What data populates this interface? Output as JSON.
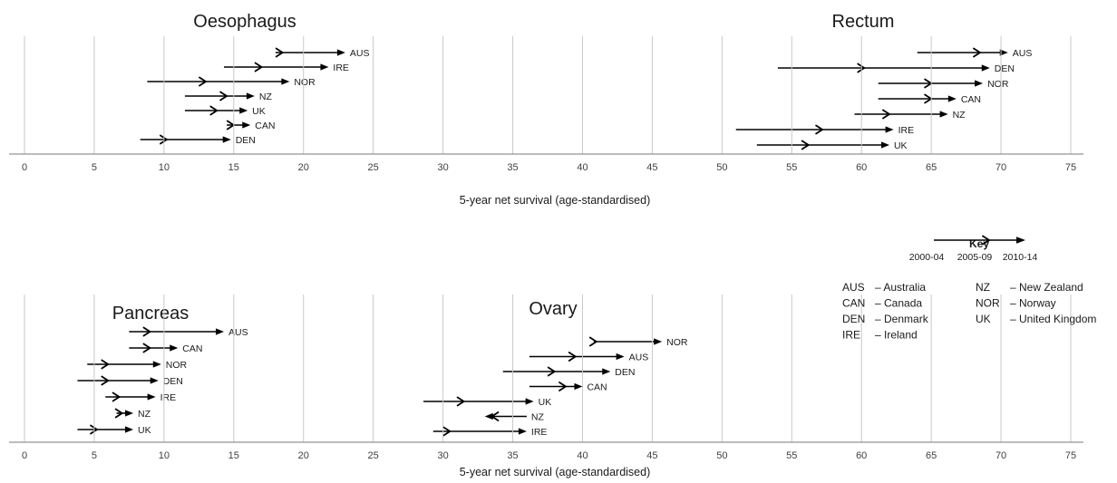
{
  "chart_data": {
    "type": "arrow",
    "x_axis": {
      "range": [
        0,
        75
      ],
      "ticks": [
        0,
        5,
        10,
        15,
        20,
        25,
        30,
        35,
        40,
        45,
        50,
        55,
        60,
        65,
        70,
        75
      ],
      "label": "5-year net survival (age-standardised)"
    },
    "panels": [
      {
        "title": "Oesophagus",
        "rows": [
          {
            "country": "AUS",
            "p2000_04": 18.0,
            "p2005_09": 18.5,
            "p2010_14": 23.0
          },
          {
            "country": "IRE",
            "p2000_04": 14.3,
            "p2005_09": 17.0,
            "p2010_14": 21.8
          },
          {
            "country": "NOR",
            "p2000_04": 8.8,
            "p2005_09": 13.0,
            "p2010_14": 19.0
          },
          {
            "country": "NZ",
            "p2000_04": 11.5,
            "p2005_09": 14.5,
            "p2010_14": 16.5
          },
          {
            "country": "UK",
            "p2000_04": 11.5,
            "p2005_09": 13.8,
            "p2010_14": 16.0
          },
          {
            "country": "CAN",
            "p2000_04": 14.5,
            "p2005_09": 15.0,
            "p2010_14": 16.2
          },
          {
            "country": "DEN",
            "p2000_04": 8.3,
            "p2005_09": 10.2,
            "p2010_14": 14.8
          }
        ]
      },
      {
        "title": "Rectum",
        "rows": [
          {
            "country": "AUS",
            "p2000_04": 64.0,
            "p2005_09": 68.5,
            "p2010_14": 70.5
          },
          {
            "country": "DEN",
            "p2000_04": 54.0,
            "p2005_09": 60.2,
            "p2010_14": 69.2
          },
          {
            "country": "NOR",
            "p2000_04": 61.2,
            "p2005_09": 65.0,
            "p2010_14": 68.7
          },
          {
            "country": "CAN",
            "p2000_04": 61.2,
            "p2005_09": 65.0,
            "p2010_14": 66.8
          },
          {
            "country": "NZ",
            "p2000_04": 59.5,
            "p2005_09": 62.0,
            "p2010_14": 66.2
          },
          {
            "country": "IRE",
            "p2000_04": 51.0,
            "p2005_09": 57.2,
            "p2010_14": 62.3
          },
          {
            "country": "UK",
            "p2000_04": 52.5,
            "p2005_09": 56.2,
            "p2010_14": 62.0
          }
        ]
      },
      {
        "title": "Pancreas",
        "rows": [
          {
            "country": "AUS",
            "p2000_04": 7.5,
            "p2005_09": 9.0,
            "p2010_14": 14.3
          },
          {
            "country": "CAN",
            "p2000_04": 7.5,
            "p2005_09": 9.0,
            "p2010_14": 11.0
          },
          {
            "country": "NOR",
            "p2000_04": 4.5,
            "p2005_09": 6.0,
            "p2010_14": 9.8
          },
          {
            "country": "DEN",
            "p2000_04": 3.8,
            "p2005_09": 6.0,
            "p2010_14": 9.6
          },
          {
            "country": "IRE",
            "p2000_04": 5.8,
            "p2005_09": 6.8,
            "p2010_14": 9.4
          },
          {
            "country": "NZ",
            "p2000_04": 6.6,
            "p2005_09": 7.0,
            "p2010_14": 7.8
          },
          {
            "country": "UK",
            "p2000_04": 3.8,
            "p2005_09": 5.2,
            "p2010_14": 7.8
          }
        ]
      },
      {
        "title": "Ovary",
        "rows": [
          {
            "country": "NOR",
            "p2000_04": 40.8,
            "p2005_09": 41.0,
            "p2010_14": 45.7
          },
          {
            "country": "AUS",
            "p2000_04": 36.2,
            "p2005_09": 39.5,
            "p2010_14": 43.0
          },
          {
            "country": "DEN",
            "p2000_04": 34.3,
            "p2005_09": 38.0,
            "p2010_14": 42.0
          },
          {
            "country": "CAN",
            "p2000_04": 36.2,
            "p2005_09": 38.8,
            "p2010_14": 40.0
          },
          {
            "country": "UK",
            "p2000_04": 28.6,
            "p2005_09": 31.5,
            "p2010_14": 36.5
          },
          {
            "country": "NZ",
            "p2000_04": 36.0,
            "p2005_09": 33.5,
            "p2010_14": 33.0
          },
          {
            "country": "IRE",
            "p2000_04": 29.3,
            "p2005_09": 30.5,
            "p2010_14": 36.0
          }
        ]
      }
    ]
  },
  "key": {
    "title": "Key",
    "periods": [
      "2000-04",
      "2005-09",
      "2010-14"
    ],
    "legend": [
      {
        "code": "AUS",
        "name": "– Australia"
      },
      {
        "code": "CAN",
        "name": "– Canada"
      },
      {
        "code": "DEN",
        "name": "– Denmark"
      },
      {
        "code": "IRE",
        "name": "– Ireland"
      },
      {
        "code": "NZ",
        "name": "– New Zealand"
      },
      {
        "code": "NOR",
        "name": "– Norway"
      },
      {
        "code": "UK",
        "name": "– United Kingdom"
      }
    ]
  }
}
